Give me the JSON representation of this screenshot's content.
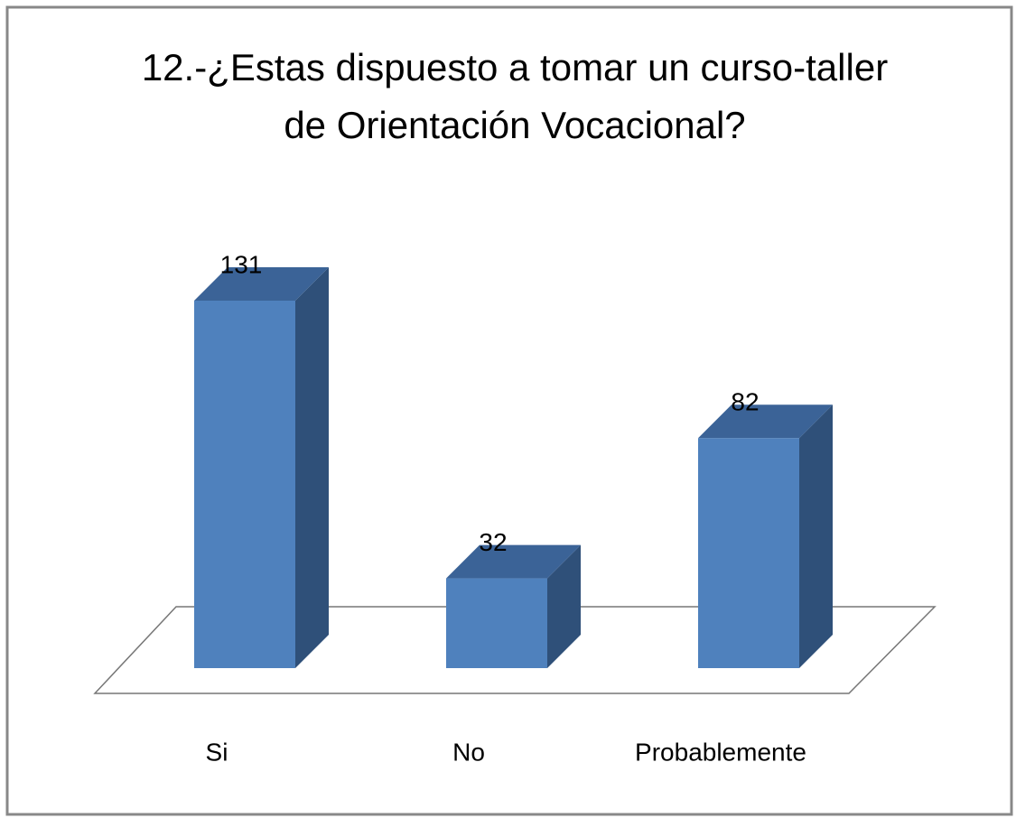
{
  "chart_data": {
    "type": "bar3d",
    "title": "12.-¿Estas dispuesto a tomar un curso-taller de Orientación Vocacional?",
    "categories": [
      "Si",
      "No",
      "Probablemente"
    ],
    "values": [
      131,
      32,
      82
    ],
    "color": "#4f81bd"
  }
}
